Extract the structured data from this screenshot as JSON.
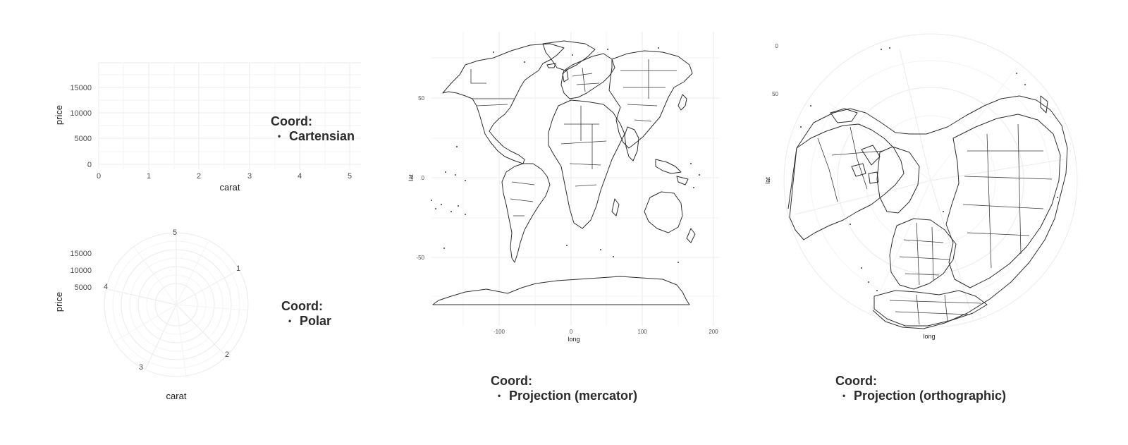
{
  "panels": {
    "cartesian": {
      "caption_head": "Coord:",
      "caption_item": "Cartensian",
      "ylabel": "price",
      "xlabel": "carat",
      "yticks": [
        "0",
        "5000",
        "10000",
        "15000"
      ],
      "xticks": [
        "0",
        "1",
        "2",
        "3",
        "4",
        "5"
      ]
    },
    "polar": {
      "caption_head": "Coord:",
      "caption_item": "Polar",
      "ylabel": "price",
      "xlabel": "carat",
      "rticks": [
        "5000",
        "10000",
        "15000"
      ],
      "angle_ticks": [
        "5",
        "1",
        "2",
        "3",
        "4"
      ]
    },
    "mercator": {
      "caption_head": "Coord:",
      "caption_item": "Projection (mercator)",
      "ylabel": "lat",
      "xlabel": "long",
      "yticks": [
        "50",
        "0",
        "-50"
      ],
      "xticks": [
        "-100",
        "0",
        "100",
        "200"
      ]
    },
    "orthographic": {
      "caption_head": "Coord:",
      "caption_item": "Projection (orthographic)",
      "ylabel": "lat",
      "xlabel": "long",
      "yticks": [
        "0",
        "50"
      ]
    }
  },
  "colors": {
    "grid": "#ebebeb",
    "land_outline": "#2d2d2d",
    "text": "#2b2b2b"
  }
}
